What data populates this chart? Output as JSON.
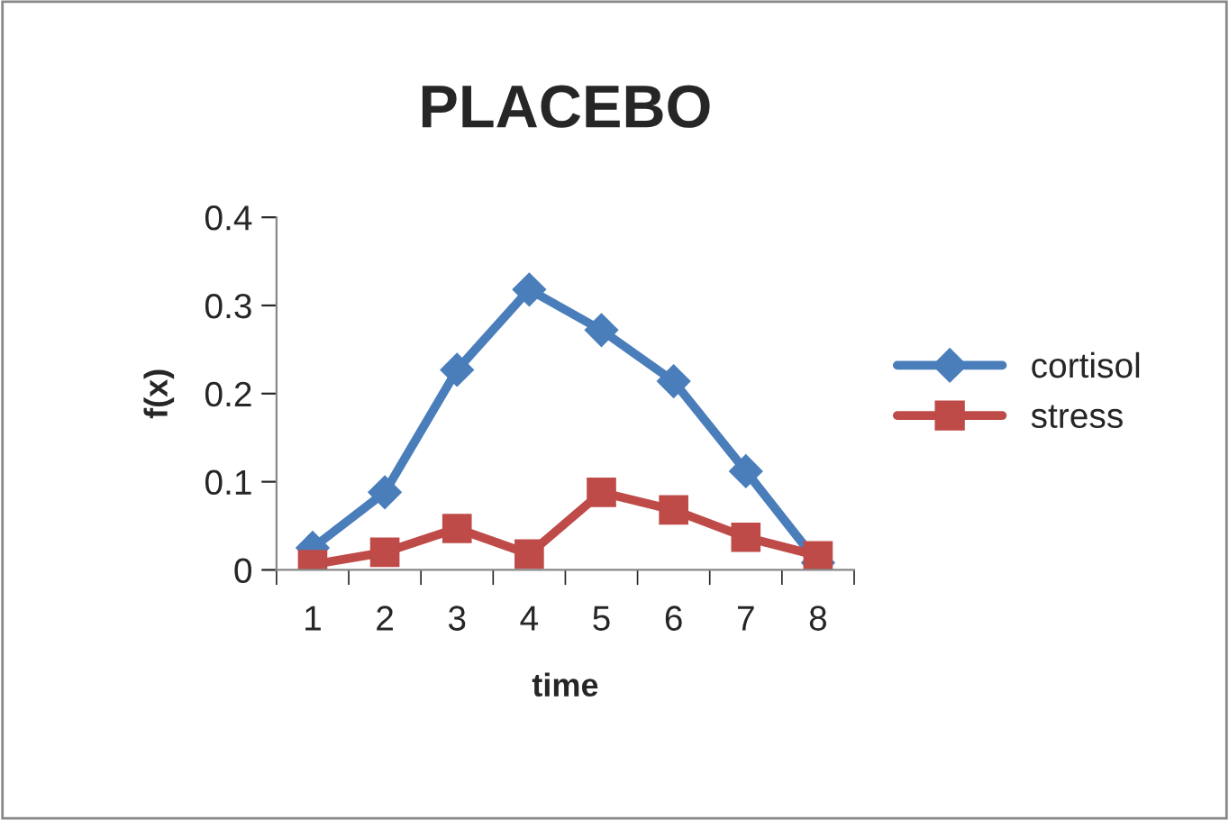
{
  "chart_data": {
    "type": "line",
    "title": "PLACEBO",
    "xlabel": "time",
    "ylabel": "f(x)",
    "categories": [
      "1",
      "2",
      "3",
      "4",
      "5",
      "6",
      "7",
      "8"
    ],
    "series": [
      {
        "name": "cortisol",
        "color": "#4a7ebb",
        "marker": "diamond",
        "values": [
          0.025,
          0.088,
          0.227,
          0.318,
          0.272,
          0.214,
          0.112,
          0.008
        ]
      },
      {
        "name": "stress",
        "color": "#be4b48",
        "marker": "square",
        "values": [
          0.006,
          0.02,
          0.047,
          0.018,
          0.088,
          0.068,
          0.037,
          0.016
        ]
      }
    ],
    "ylim": [
      0,
      0.4
    ],
    "yticks": [
      0,
      0.1,
      0.2,
      0.3,
      0.4
    ],
    "grid": false,
    "legend": "right",
    "line_style": "solid"
  }
}
